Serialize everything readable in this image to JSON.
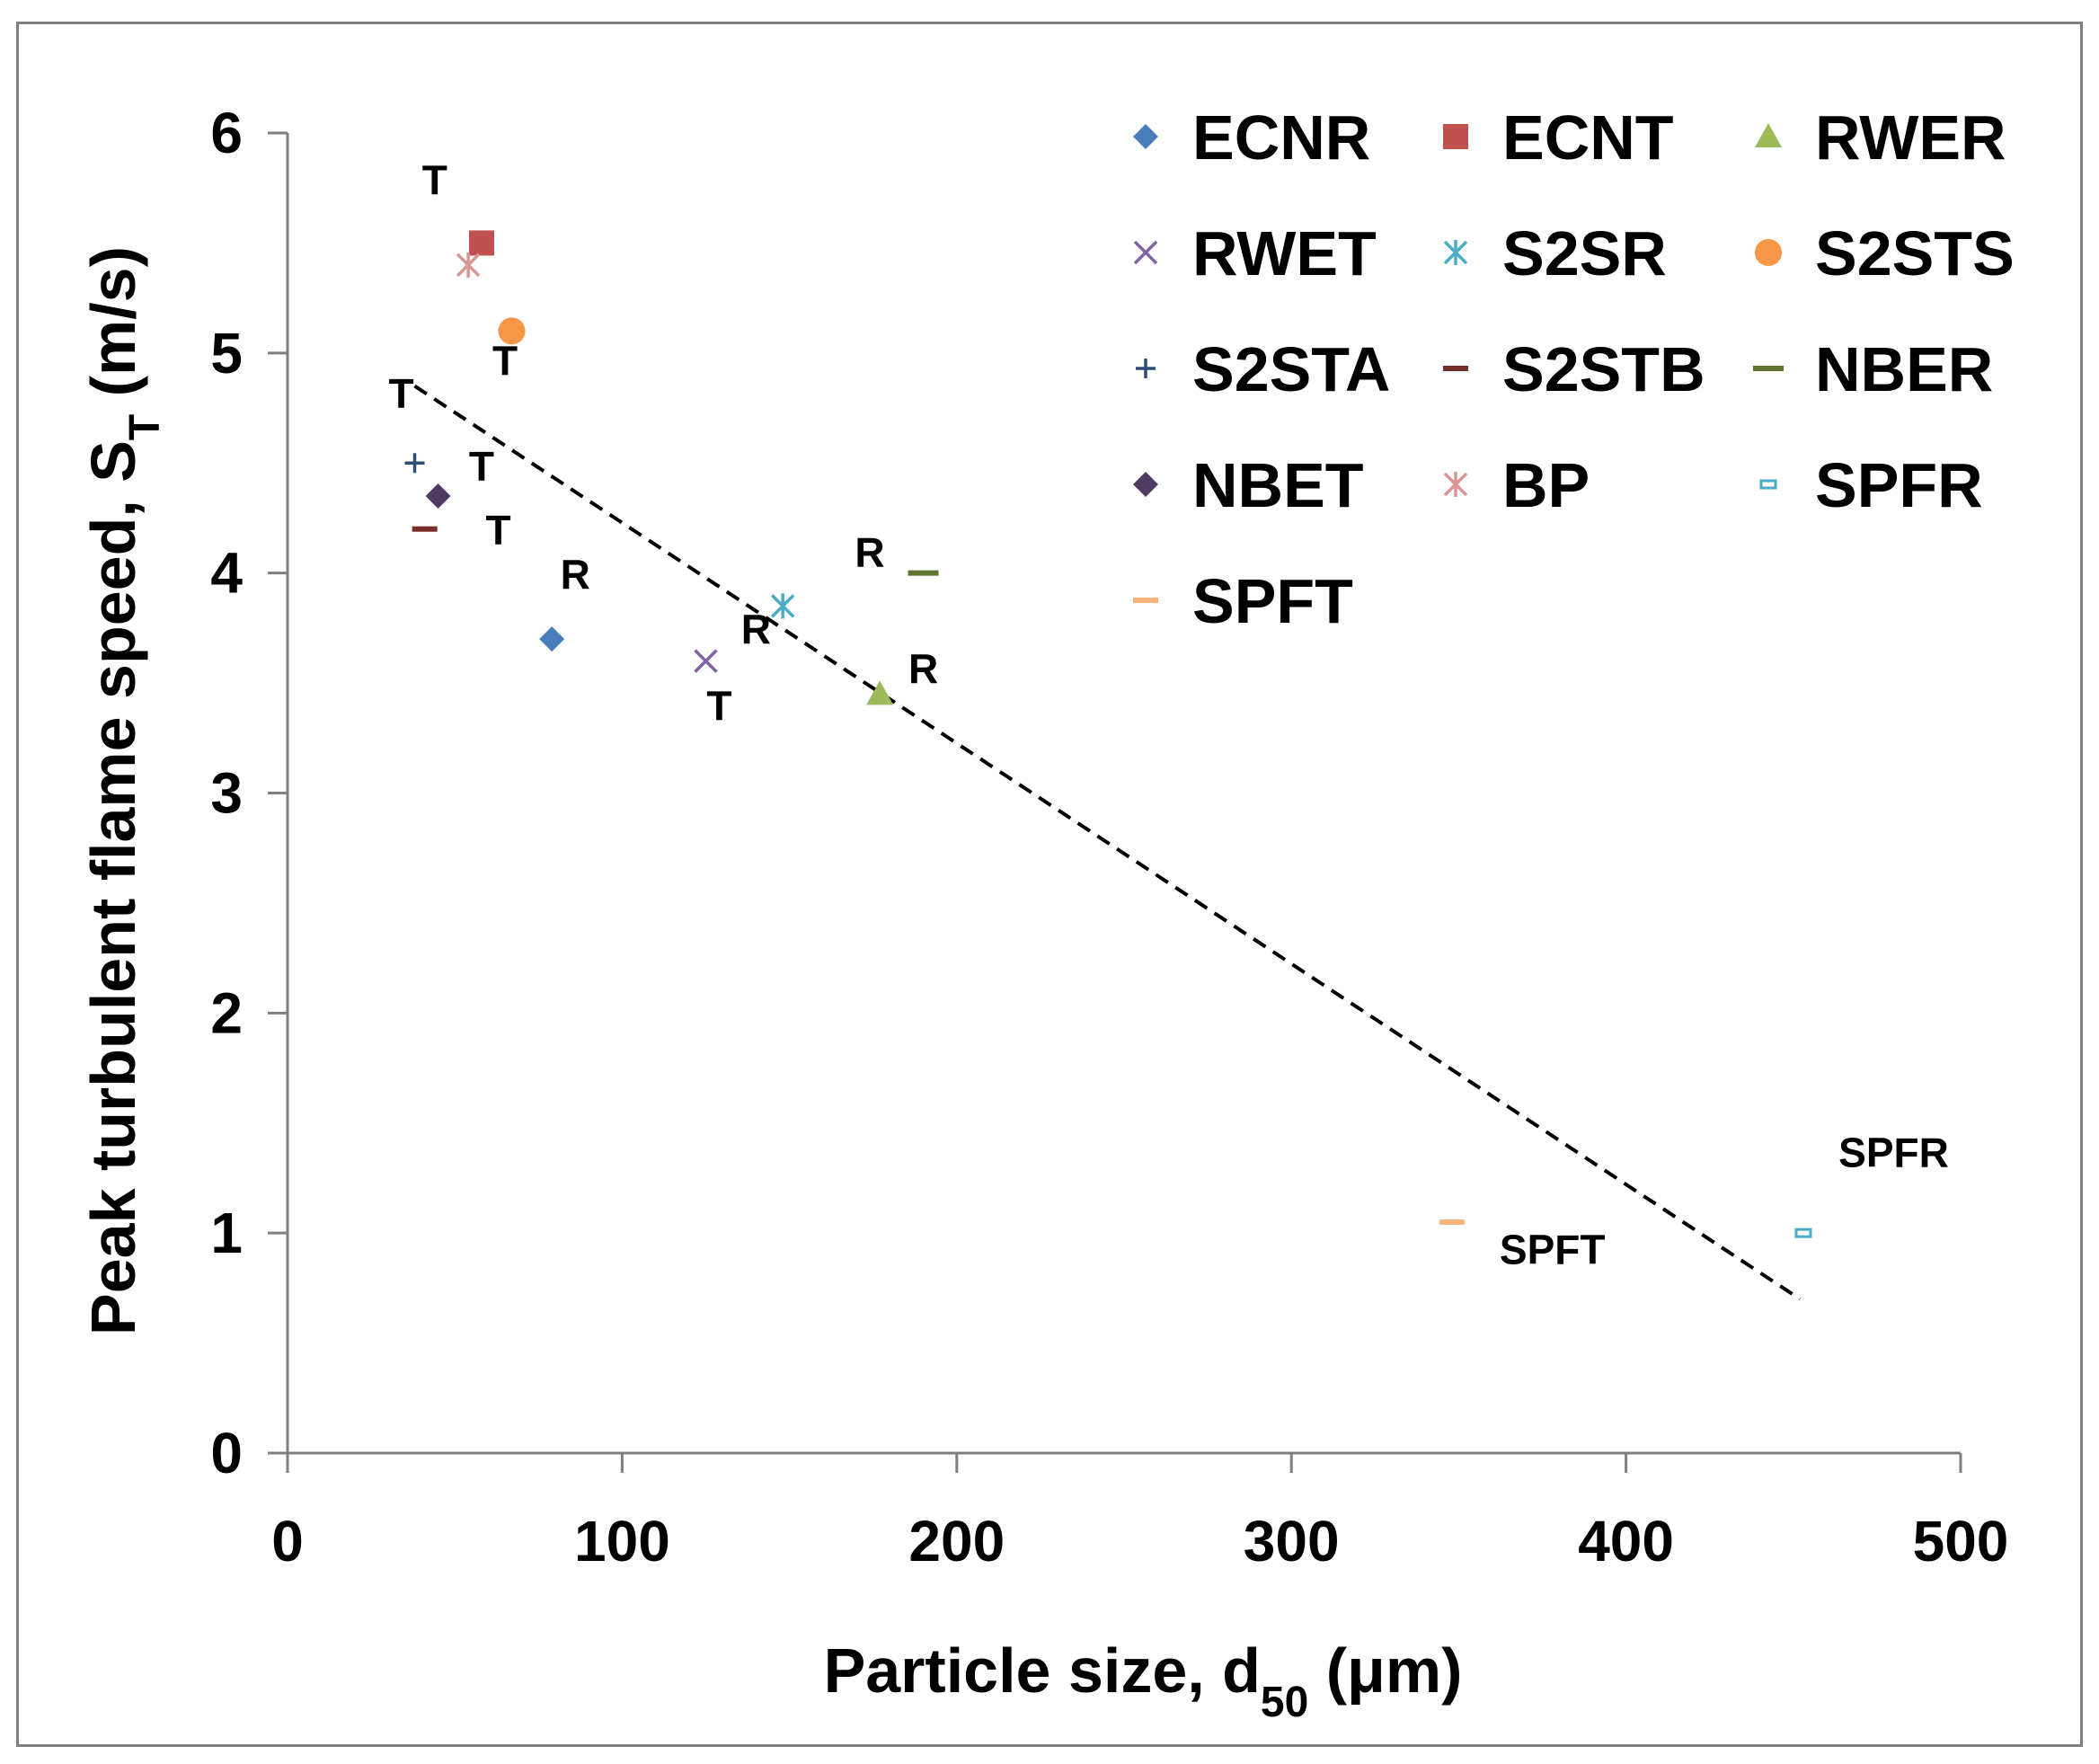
{
  "chart_data": {
    "type": "scatter",
    "title": "",
    "xlabel": {
      "main": "Particle size, d",
      "sub": "50",
      "unit": " (μm)"
    },
    "ylabel": {
      "main": "Peak turbulent flame speed, S",
      "sub": "T",
      "unit": " (m/s)"
    },
    "xlim": [
      0,
      500
    ],
    "ylim": [
      0,
      6
    ],
    "xticks": [
      "0",
      "100",
      "200",
      "300",
      "400",
      "500"
    ],
    "yticks": [
      "0",
      "1",
      "2",
      "3",
      "4",
      "5",
      "6"
    ],
    "grid": false,
    "legend_position": "top-right",
    "series": [
      {
        "name": "ECNR",
        "marker": "diamond",
        "color": "#4a7ebb",
        "x": 79,
        "y": 3.7
      },
      {
        "name": "ECNT",
        "marker": "square",
        "color": "#c0504d",
        "x": 58,
        "y": 5.5
      },
      {
        "name": "RWER",
        "marker": "triangle",
        "color": "#9bbb59",
        "x": 177,
        "y": 3.45
      },
      {
        "name": "RWET",
        "marker": "x",
        "color": "#8064a2",
        "x": 125,
        "y": 3.6
      },
      {
        "name": "S2SR",
        "marker": "star",
        "color": "#4bacc6",
        "x": 148,
        "y": 3.85
      },
      {
        "name": "S2STS",
        "marker": "circle",
        "color": "#f79646",
        "x": 67,
        "y": 5.1
      },
      {
        "name": "S2STA",
        "marker": "plus",
        "color": "#2c4d75",
        "x": 38,
        "y": 4.5
      },
      {
        "name": "S2STB",
        "marker": "dash",
        "color": "#772c2a",
        "x": 41,
        "y": 4.2
      },
      {
        "name": "NBER",
        "marker": "long-dash",
        "color": "#5f7530",
        "x": 190,
        "y": 4.0
      },
      {
        "name": "NBET",
        "marker": "diamond",
        "color": "#4d3b62",
        "x": 45,
        "y": 4.35
      },
      {
        "name": "BP",
        "marker": "star",
        "color": "#d99694",
        "x": 54,
        "y": 5.4
      },
      {
        "name": "SPFR",
        "marker": "small-rect",
        "color": "#4bacc6",
        "x": 453,
        "y": 1.0
      },
      {
        "name": "SPFT",
        "marker": "dash",
        "color": "#fab57b",
        "x": 348,
        "y": 1.05
      }
    ],
    "trendline": {
      "style": "dashed",
      "color": "#000000",
      "x": [
        38,
        452
      ],
      "y": [
        4.85,
        0.7
      ]
    },
    "annotations": [
      {
        "text": "T",
        "x": 44,
        "y": 5.72
      },
      {
        "text": "T",
        "x": 65,
        "y": 4.9
      },
      {
        "text": "T",
        "x": 34,
        "y": 4.75
      },
      {
        "text": "T",
        "x": 58,
        "y": 4.42
      },
      {
        "text": "T",
        "x": 63,
        "y": 4.13
      },
      {
        "text": "R",
        "x": 86,
        "y": 3.93
      },
      {
        "text": "R",
        "x": 140,
        "y": 3.68
      },
      {
        "text": "T",
        "x": 129,
        "y": 3.33
      },
      {
        "text": "R",
        "x": 174,
        "y": 4.03
      },
      {
        "text": "R",
        "x": 190,
        "y": 3.5
      },
      {
        "text": "SPFR",
        "x": 480,
        "y": 1.3
      },
      {
        "text": "SPFT",
        "x": 378,
        "y": 0.86
      }
    ]
  }
}
